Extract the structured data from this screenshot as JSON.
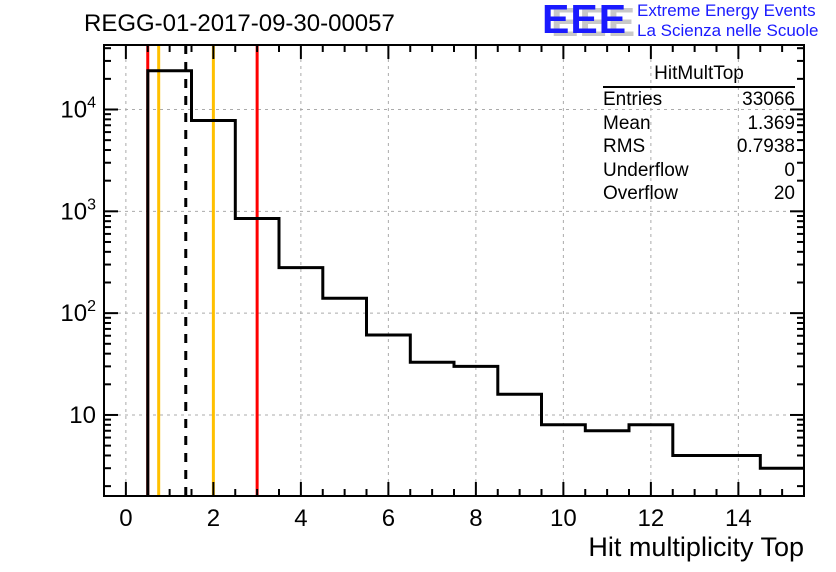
{
  "title": "REGG-01-2017-09-30-00057",
  "logo": {
    "mark": "EEE",
    "line1": "Extreme Energy Events",
    "line2": "La Scienza nelle Scuole",
    "blue": "#1a1aff",
    "shadow": "#c8c8c8"
  },
  "chart_data": {
    "type": "bar",
    "style": "root-step-histogram",
    "title": "REGG-01-2017-09-30-00057",
    "xlabel": "Hit multiplicity Top",
    "ylabel": "",
    "yscale": "log",
    "xlim": [
      -0.5,
      15.5
    ],
    "ylim": [
      1.6,
      43000
    ],
    "categories": [
      1,
      2,
      3,
      4,
      5,
      6,
      7,
      8,
      9,
      10,
      11,
      12,
      13,
      14,
      15
    ],
    "bin_edges": [
      0.5,
      1.5,
      2.5,
      3.5,
      4.5,
      5.5,
      6.5,
      7.5,
      8.5,
      9.5,
      10.5,
      11.5,
      12.5,
      13.5,
      14.5,
      15.5
    ],
    "values": [
      24000,
      7800,
      850,
      280,
      140,
      61,
      33,
      30,
      16,
      8,
      7,
      8,
      4,
      4,
      3
    ],
    "x_ticks_labeled": [
      0,
      2,
      4,
      6,
      8,
      10,
      12,
      14
    ],
    "x_minor_step": 0.5,
    "y_decade_exponents": [
      1,
      2,
      3,
      4
    ],
    "grid": {
      "on": true,
      "style": "dashed",
      "color": "#ababab"
    },
    "line_color": "#000000",
    "marker_lines": [
      {
        "x": 0.5,
        "color": "#ff0000",
        "style": "solid",
        "name": "red-limit-low"
      },
      {
        "x": 3.0,
        "color": "#ff0000",
        "style": "solid",
        "name": "red-limit-high"
      },
      {
        "x": 0.75,
        "color": "#ffc000",
        "style": "solid",
        "name": "yellow-limit-low"
      },
      {
        "x": 2.0,
        "color": "#ffc000",
        "style": "solid",
        "name": "yellow-limit-high"
      },
      {
        "x": 1.369,
        "color": "#000000",
        "style": "dashed",
        "name": "mean-line"
      }
    ],
    "stats_box": {
      "title": "HitMultTop",
      "rows": [
        {
          "label": "Entries",
          "value": "33066"
        },
        {
          "label": "Mean",
          "value": "1.369"
        },
        {
          "label": "RMS",
          "value": "0.7938"
        },
        {
          "label": "Underflow",
          "value": "0"
        },
        {
          "label": "Overflow",
          "value": "20"
        }
      ]
    }
  }
}
